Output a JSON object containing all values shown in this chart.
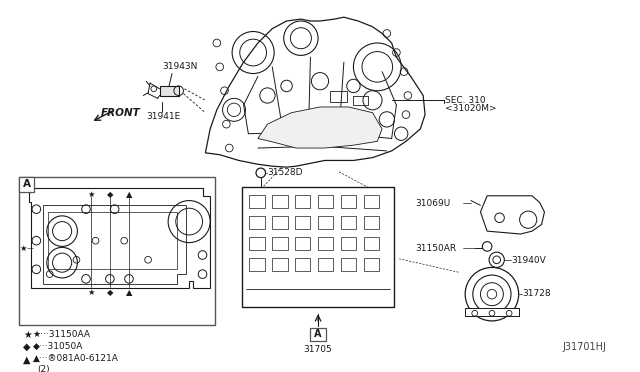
{
  "bg_color": "#ffffff",
  "diagram_id": "J31701HJ",
  "labels": {
    "front": "FRONT",
    "sec310_line1": "SEC. 310",
    "sec310_line2": "<31020M>",
    "part_31943N": "31943N",
    "part_31941E": "31941E",
    "part_31528D": "31528D",
    "part_31705": "31705",
    "part_31069U": "31069U",
    "part_31150AR": "31150AR",
    "part_31940V": "31940V",
    "part_31728": "31728",
    "leg1": "★···31150AA",
    "leg2": "◆···31050A",
    "leg3": "▲···®081A0-6121A",
    "leg3b": "(2)",
    "view_A": "A"
  },
  "lc": "#1a1a1a",
  "tc": "#1a1a1a"
}
